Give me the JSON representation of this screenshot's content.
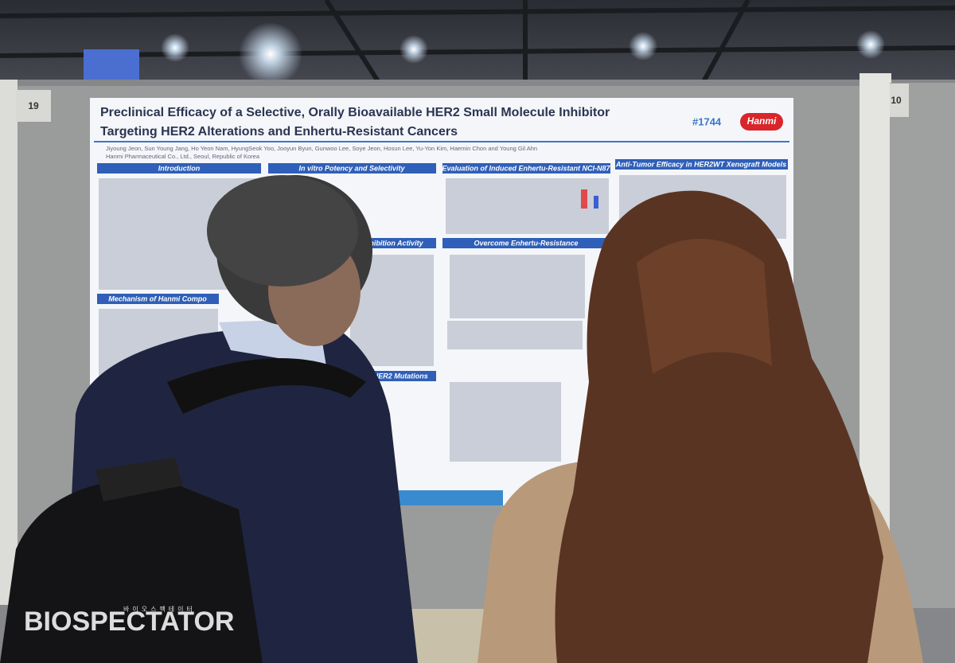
{
  "board_numbers": [
    "19",
    "10"
  ],
  "poster": {
    "title_line1": "Preclinical Efficacy of a Selective, Orally Bioavailable HER2 Small Molecule Inhibitor",
    "title_line2": "Targeting HER2 Alterations and Enhertu-Resistant Cancers",
    "number": "#1744",
    "logo": "Hanmi",
    "authors": "Jiyoung Jeon, Sun Young Jang, Ho Yeon Nam, HyungSeok Yoo, Jooyun Byun, Gunwoo Lee, Soye Jeon, Hosun Lee, Yu-Yon Kim, Haemin Chon and Young Gil Ahn",
    "affiliation": "Hanmi Pharmaceutical Co., Ltd., Seoul, Republic of Korea",
    "sections": [
      "Introduction",
      "In vitro Potency and Selectivity",
      "Evaluation of Induced Enhertu-Resistant NCI-N87",
      "Anti-Tumor Efficacy in HER2WT Xenograft Models",
      "Overcome Enhertu-Resistance",
      "Inhibition Activity",
      "Mechanism of Hanmi Compo",
      "and HER2 Mutations"
    ]
  },
  "watermark": {
    "brand": "BIOSPECTATOR",
    "korean": "바이오스펙테이터"
  }
}
